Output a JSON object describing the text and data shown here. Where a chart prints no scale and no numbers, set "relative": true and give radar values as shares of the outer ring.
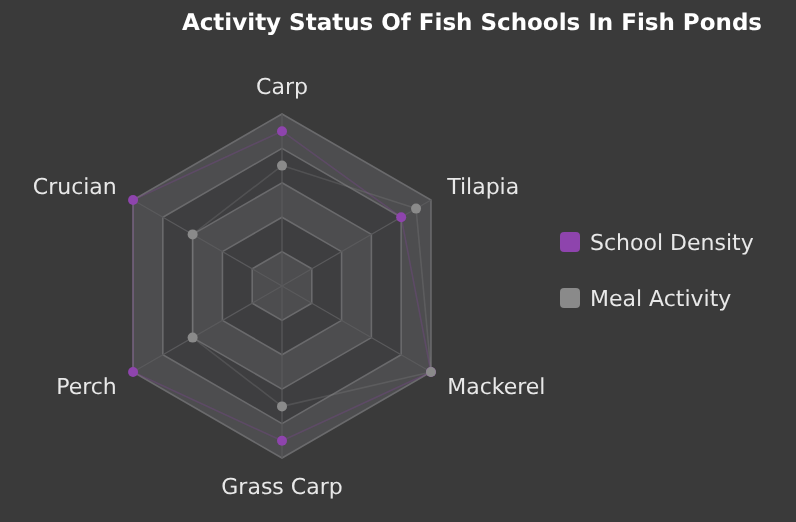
{
  "chart_data": {
    "type": "radar",
    "title": "Activity Status Of Fish Schools In Fish Ponds",
    "relative": true,
    "categories": [
      "Carp",
      "Tilapia",
      "Mackerel",
      "Grass Carp",
      "Perch",
      "Crucian"
    ],
    "legend": "right",
    "marker": "circle",
    "series": [
      {
        "name": "School Density",
        "color": "#8e44ad",
        "values": [
          0.9,
          0.8,
          1.0,
          0.9,
          1.0,
          1.0
        ]
      },
      {
        "name": "Meal Activity",
        "color": "#8a8a8a",
        "values": [
          0.7,
          0.9,
          1.0,
          0.7,
          0.6,
          0.6
        ]
      }
    ]
  }
}
